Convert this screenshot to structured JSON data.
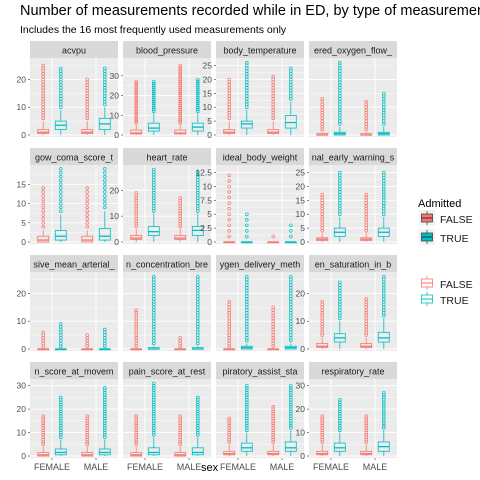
{
  "title": "Number of measurements recorded while in ED, by type of measuremen",
  "subtitle": "Includes the 16 most frequently used measurements only",
  "colors": {
    "false": "#F8766D",
    "true": "#00BFC4",
    "panel_bg": "#EBEBEB",
    "strip_bg": "#D9D9D9",
    "grid_major": "#FFFFFF"
  },
  "legends": [
    {
      "title": "Admitted",
      "style": "filled-box",
      "items": [
        "FALSE",
        "TRUE"
      ]
    },
    {
      "title": "",
      "style": "hollow-box",
      "items": [
        "FALSE",
        "TRUE"
      ]
    }
  ],
  "chart_data": {
    "type": "box",
    "facet_layout": {
      "rows": 4,
      "cols": 4
    },
    "xlabel": "sex",
    "ylabel": "",
    "categories": [
      "FEMALE",
      "MALE"
    ],
    "series_names": [
      "FALSE",
      "TRUE"
    ],
    "panels": [
      {
        "name": "acvpu",
        "ylim": [
          0,
          27
        ],
        "yticks": [
          0,
          10,
          20
        ],
        "boxes": [
          {
            "sex": "FEMALE",
            "admitted": "FALSE",
            "q1": 0.5,
            "median": 1,
            "q3": 2,
            "whisker_high": 5,
            "max": 25
          },
          {
            "sex": "FEMALE",
            "admitted": "TRUE",
            "q1": 2,
            "median": 3.5,
            "q3": 5,
            "whisker_high": 9,
            "max": 24
          },
          {
            "sex": "MALE",
            "admitted": "FALSE",
            "q1": 0.5,
            "median": 1,
            "q3": 2,
            "whisker_high": 5,
            "max": 20
          },
          {
            "sex": "MALE",
            "admitted": "TRUE",
            "q1": 2,
            "median": 4,
            "q3": 6,
            "whisker_high": 10,
            "max": 24
          }
        ]
      },
      {
        "name": "blood_pressure",
        "ylim": [
          0,
          38
        ],
        "yticks": [
          0,
          10,
          20,
          30
        ],
        "boxes": [
          {
            "sex": "FEMALE",
            "admitted": "FALSE",
            "q1": 0.5,
            "median": 1,
            "q3": 2.5,
            "whisker_high": 5,
            "max": 27
          },
          {
            "sex": "FEMALE",
            "admitted": "TRUE",
            "q1": 2,
            "median": 3.5,
            "q3": 6,
            "whisker_high": 11,
            "max": 27
          },
          {
            "sex": "MALE",
            "admitted": "FALSE",
            "q1": 0.5,
            "median": 1,
            "q3": 2.5,
            "whisker_high": 5,
            "max": 35
          },
          {
            "sex": "MALE",
            "admitted": "TRUE",
            "q1": 2,
            "median": 4,
            "q3": 6,
            "whisker_high": 11,
            "max": 28
          }
        ]
      },
      {
        "name": "body_temperature",
        "ylim": [
          0,
          27
        ],
        "yticks": [
          0,
          5,
          10,
          15,
          20,
          25
        ],
        "boxes": [
          {
            "sex": "FEMALE",
            "admitted": "FALSE",
            "q1": 0.5,
            "median": 1,
            "q3": 2,
            "whisker_high": 5,
            "max": 20
          },
          {
            "sex": "FEMALE",
            "admitted": "TRUE",
            "q1": 2.5,
            "median": 4,
            "q3": 5,
            "whisker_high": 9,
            "max": 26
          },
          {
            "sex": "MALE",
            "admitted": "FALSE",
            "q1": 0.5,
            "median": 1,
            "q3": 2,
            "whisker_high": 5,
            "max": 21
          },
          {
            "sex": "MALE",
            "admitted": "TRUE",
            "q1": 2.5,
            "median": 4.5,
            "q3": 7,
            "whisker_high": 12,
            "max": 24
          }
        ]
      },
      {
        "name": "inspired_oxygen_flow_rate",
        "strip_label": "ered_oxygen_flow_",
        "ylim": [
          0,
          27
        ],
        "yticks": [],
        "boxes": [
          {
            "sex": "FEMALE",
            "admitted": "FALSE",
            "q1": 0,
            "median": 0,
            "q3": 0.5,
            "whisker_high": 1,
            "max": 13
          },
          {
            "sex": "FEMALE",
            "admitted": "TRUE",
            "q1": 0,
            "median": 0.5,
            "q3": 1,
            "whisker_high": 3,
            "max": 26
          },
          {
            "sex": "MALE",
            "admitted": "FALSE",
            "q1": 0,
            "median": 0,
            "q3": 0.5,
            "whisker_high": 1,
            "max": 12
          },
          {
            "sex": "MALE",
            "admitted": "TRUE",
            "q1": 0,
            "median": 0.5,
            "q3": 1,
            "whisker_high": 3,
            "max": 15
          }
        ]
      },
      {
        "name": "glasgow_coma_score_total",
        "strip_label": "gow_coma_score_t",
        "ylim": [
          0,
          19.5
        ],
        "yticks": [
          0,
          5,
          10,
          15
        ],
        "boxes": [
          {
            "sex": "FEMALE",
            "admitted": "FALSE",
            "q1": 0,
            "median": 0.5,
            "q3": 1.5,
            "whisker_high": 3,
            "max": 14
          },
          {
            "sex": "FEMALE",
            "admitted": "TRUE",
            "q1": 0.5,
            "median": 1.5,
            "q3": 3,
            "whisker_high": 7,
            "max": 19
          },
          {
            "sex": "MALE",
            "admitted": "FALSE",
            "q1": 0,
            "median": 0.5,
            "q3": 1.5,
            "whisker_high": 3,
            "max": 14
          },
          {
            "sex": "MALE",
            "admitted": "TRUE",
            "q1": 0.5,
            "median": 1.5,
            "q3": 3.5,
            "whisker_high": 8,
            "max": 19
          }
        ]
      },
      {
        "name": "heart_rate",
        "ylim": [
          0,
          29
        ],
        "yticks": [
          0,
          10,
          20
        ],
        "boxes": [
          {
            "sex": "FEMALE",
            "admitted": "FALSE",
            "q1": 1,
            "median": 1.5,
            "q3": 2.5,
            "whisker_high": 5,
            "max": 19
          },
          {
            "sex": "FEMALE",
            "admitted": "TRUE",
            "q1": 2.5,
            "median": 4,
            "q3": 6,
            "whisker_high": 11,
            "max": 28
          },
          {
            "sex": "MALE",
            "admitted": "FALSE",
            "q1": 1,
            "median": 1.5,
            "q3": 2.5,
            "whisker_high": 5,
            "max": 17
          },
          {
            "sex": "MALE",
            "admitted": "TRUE",
            "q1": 2.5,
            "median": 4.5,
            "q3": 6,
            "whisker_high": 11,
            "max": 27
          }
        ]
      },
      {
        "name": "ideal_body_weight",
        "ylim": [
          0,
          13.5
        ],
        "yticks": [
          0,
          2.5,
          5,
          7.5,
          10,
          12.5
        ],
        "boxes": [
          {
            "sex": "FEMALE",
            "admitted": "FALSE",
            "q1": 0,
            "median": 0,
            "q3": 0,
            "whisker_high": 0,
            "max": 12
          },
          {
            "sex": "FEMALE",
            "admitted": "TRUE",
            "q1": 0,
            "median": 0,
            "q3": 0,
            "whisker_high": 0,
            "max": 5
          },
          {
            "sex": "MALE",
            "admitted": "FALSE",
            "q1": 0,
            "median": 0,
            "q3": 0,
            "whisker_high": 0,
            "max": 1
          },
          {
            "sex": "MALE",
            "admitted": "TRUE",
            "q1": 0,
            "median": 0,
            "q3": 0,
            "whisker_high": 0,
            "max": 3
          }
        ]
      },
      {
        "name": "national_early_warning_score",
        "strip_label": "nal_early_warning_s",
        "ylim": [
          0,
          27
        ],
        "yticks": [
          0,
          5,
          10,
          15,
          20,
          25
        ],
        "boxes": [
          {
            "sex": "FEMALE",
            "admitted": "FALSE",
            "q1": 0.5,
            "median": 1,
            "q3": 1.5,
            "whisker_high": 3,
            "max": 17
          },
          {
            "sex": "FEMALE",
            "admitted": "TRUE",
            "q1": 2,
            "median": 3.5,
            "q3": 5,
            "whisker_high": 9,
            "max": 25
          },
          {
            "sex": "MALE",
            "admitted": "FALSE",
            "q1": 0.5,
            "median": 1,
            "q3": 1.5,
            "whisker_high": 3,
            "max": 17
          },
          {
            "sex": "MALE",
            "admitted": "TRUE",
            "q1": 2,
            "median": 3.5,
            "q3": 5,
            "whisker_high": 9,
            "max": 25
          }
        ]
      },
      {
        "name": "invasive_mean_arterial_pressure",
        "strip_label": "sive_mean_arterial_",
        "ylim": [
          0,
          27
        ],
        "yticks": [
          0,
          10,
          20
        ],
        "boxes": [
          {
            "sex": "FEMALE",
            "admitted": "FALSE",
            "q1": 0,
            "median": 0,
            "q3": 0,
            "whisker_high": 0,
            "max": 6
          },
          {
            "sex": "FEMALE",
            "admitted": "TRUE",
            "q1": 0,
            "median": 0,
            "q3": 0,
            "whisker_high": 0,
            "max": 9
          },
          {
            "sex": "MALE",
            "admitted": "FALSE",
            "q1": 0,
            "median": 0,
            "q3": 0,
            "whisker_high": 0,
            "max": 5
          },
          {
            "sex": "MALE",
            "admitted": "TRUE",
            "q1": 0,
            "median": 0,
            "q3": 0,
            "whisker_high": 0,
            "max": 7
          }
        ]
      },
      {
        "name": "oxygen_concentration_breathed",
        "strip_label": "n_concentration_bre",
        "ylim": [
          0,
          27
        ],
        "yticks": [],
        "boxes": [
          {
            "sex": "FEMALE",
            "admitted": "FALSE",
            "q1": 0,
            "median": 0,
            "q3": 0,
            "whisker_high": 0,
            "max": 14
          },
          {
            "sex": "FEMALE",
            "admitted": "TRUE",
            "q1": 0,
            "median": 0,
            "q3": 0.5,
            "whisker_high": 1,
            "max": 26
          },
          {
            "sex": "MALE",
            "admitted": "FALSE",
            "q1": 0,
            "median": 0,
            "q3": 0,
            "whisker_high": 0,
            "max": 4
          },
          {
            "sex": "MALE",
            "admitted": "TRUE",
            "q1": 0,
            "median": 0,
            "q3": 0.5,
            "whisker_high": 1,
            "max": 26
          }
        ]
      },
      {
        "name": "oxygen_delivery_method",
        "strip_label": "ygen_delivery_meth",
        "ylim": [
          0,
          27
        ],
        "yticks": [],
        "boxes": [
          {
            "sex": "FEMALE",
            "admitted": "FALSE",
            "q1": 0,
            "median": 0,
            "q3": 0,
            "whisker_high": 0,
            "max": 17
          },
          {
            "sex": "FEMALE",
            "admitted": "TRUE",
            "q1": 0,
            "median": 0.5,
            "q3": 1,
            "whisker_high": 2,
            "max": 26
          },
          {
            "sex": "MALE",
            "admitted": "FALSE",
            "q1": 0,
            "median": 0,
            "q3": 0,
            "whisker_high": 0,
            "max": 15
          },
          {
            "sex": "MALE",
            "admitted": "TRUE",
            "q1": 0,
            "median": 0.5,
            "q3": 1,
            "whisker_high": 2,
            "max": 26
          }
        ]
      },
      {
        "name": "oxygen_saturation_in_blood",
        "strip_label": "en_saturation_in_b",
        "ylim": [
          0,
          27
        ],
        "yticks": [
          0,
          10,
          20
        ],
        "boxes": [
          {
            "sex": "FEMALE",
            "admitted": "FALSE",
            "q1": 0.5,
            "median": 1,
            "q3": 2,
            "whisker_high": 4,
            "max": 17
          },
          {
            "sex": "FEMALE",
            "admitted": "TRUE",
            "q1": 2.5,
            "median": 4,
            "q3": 5.5,
            "whisker_high": 10,
            "max": 24
          },
          {
            "sex": "MALE",
            "admitted": "FALSE",
            "q1": 0.5,
            "median": 1,
            "q3": 2,
            "whisker_high": 4,
            "max": 18
          },
          {
            "sex": "MALE",
            "admitted": "TRUE",
            "q1": 2.5,
            "median": 4,
            "q3": 6,
            "whisker_high": 11,
            "max": 26
          }
        ]
      },
      {
        "name": "pain_score_at_movement",
        "strip_label": "n_score_at_movem",
        "ylim": [
          0,
          32
        ],
        "yticks": [
          0,
          10,
          20,
          30
        ],
        "boxes": [
          {
            "sex": "FEMALE",
            "admitted": "FALSE",
            "q1": 0,
            "median": 0.5,
            "q3": 1.5,
            "whisker_high": 4,
            "max": 17
          },
          {
            "sex": "FEMALE",
            "admitted": "TRUE",
            "q1": 0.5,
            "median": 1.5,
            "q3": 3,
            "whisker_high": 7,
            "max": 25
          },
          {
            "sex": "MALE",
            "admitted": "FALSE",
            "q1": 0,
            "median": 0.5,
            "q3": 1.5,
            "whisker_high": 4,
            "max": 17
          },
          {
            "sex": "MALE",
            "admitted": "TRUE",
            "q1": 0.5,
            "median": 1.5,
            "q3": 3,
            "whisker_high": 7,
            "max": 29
          }
        ]
      },
      {
        "name": "pain_score_at_rest",
        "strip_label": "pain_score_at_rest",
        "ylim": [
          0,
          32
        ],
        "yticks": [],
        "boxes": [
          {
            "sex": "FEMALE",
            "admitted": "FALSE",
            "q1": 0,
            "median": 0.5,
            "q3": 1.5,
            "whisker_high": 4,
            "max": 17
          },
          {
            "sex": "FEMALE",
            "admitted": "TRUE",
            "q1": 0.5,
            "median": 1.5,
            "q3": 3.5,
            "whisker_high": 8,
            "max": 31
          },
          {
            "sex": "MALE",
            "admitted": "FALSE",
            "q1": 0,
            "median": 0.5,
            "q3": 1.5,
            "whisker_high": 4,
            "max": 17
          },
          {
            "sex": "MALE",
            "admitted": "TRUE",
            "q1": 0.5,
            "median": 1.5,
            "q3": 3.5,
            "whisker_high": 8,
            "max": 25
          }
        ]
      },
      {
        "name": "respiratory_assist_status",
        "strip_label": "piratory_assist_sta",
        "ylim": [
          0,
          32
        ],
        "yticks": [],
        "boxes": [
          {
            "sex": "FEMALE",
            "admitted": "FALSE",
            "q1": 0.5,
            "median": 1,
            "q3": 2,
            "whisker_high": 5,
            "max": 16
          },
          {
            "sex": "FEMALE",
            "admitted": "TRUE",
            "q1": 2,
            "median": 3.5,
            "q3": 5.5,
            "whisker_high": 10,
            "max": 30
          },
          {
            "sex": "MALE",
            "admitted": "FALSE",
            "q1": 0.5,
            "median": 1,
            "q3": 2,
            "whisker_high": 5,
            "max": 21
          },
          {
            "sex": "MALE",
            "admitted": "TRUE",
            "q1": 2,
            "median": 3.5,
            "q3": 6,
            "whisker_high": 11,
            "max": 30
          }
        ]
      },
      {
        "name": "respiratory_rate",
        "ylim": [
          0,
          32
        ],
        "yticks": [
          0,
          10,
          20,
          30
        ],
        "boxes": [
          {
            "sex": "FEMALE",
            "admitted": "FALSE",
            "q1": 0.5,
            "median": 1,
            "q3": 2,
            "whisker_high": 5,
            "max": 17
          },
          {
            "sex": "FEMALE",
            "admitted": "TRUE",
            "q1": 2,
            "median": 3.5,
            "q3": 5.5,
            "whisker_high": 10,
            "max": 24
          },
          {
            "sex": "MALE",
            "admitted": "FALSE",
            "q1": 0.5,
            "median": 1,
            "q3": 2,
            "whisker_high": 5,
            "max": 17
          },
          {
            "sex": "MALE",
            "admitted": "TRUE",
            "q1": 2,
            "median": 4,
            "q3": 6,
            "whisker_high": 11,
            "max": 27
          }
        ]
      }
    ]
  }
}
